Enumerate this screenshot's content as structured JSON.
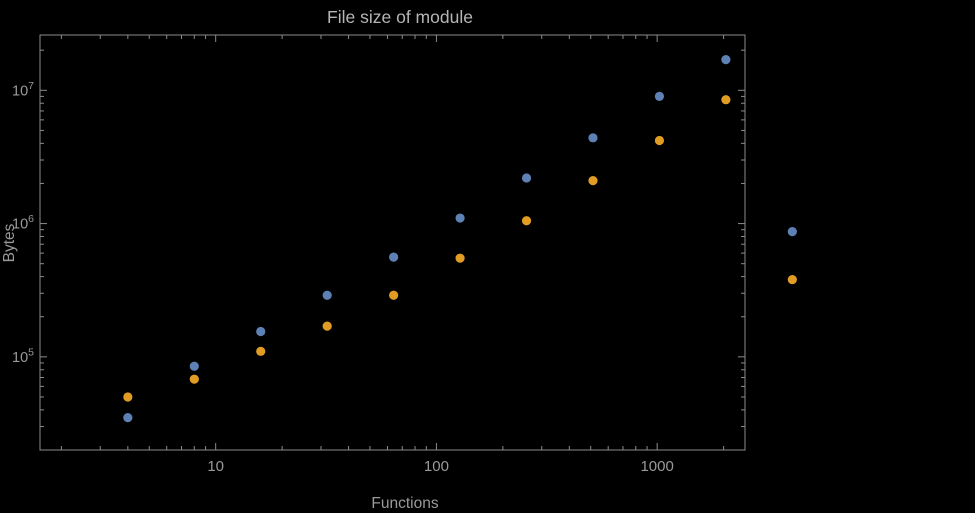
{
  "title": "File size of module",
  "xlabel": "Functions",
  "ylabel": "Bytes",
  "colors": {
    "background": "#000000",
    "frame": "#8c8c8c",
    "grid": "#6b6b6b",
    "tick_text": "#9a9a9a",
    "label_text": "#9a9a9a",
    "title_text": "#b5b5b5",
    "series1": "#5e81b5",
    "series2": "#e19c24"
  },
  "chart_data": {
    "type": "scatter",
    "title": "File size of module",
    "xlabel": "Functions",
    "ylabel": "Bytes",
    "xscale": "log",
    "yscale": "log",
    "grid": "dotted-major",
    "legend_position": "none",
    "xlim": [
      1.6,
      2500
    ],
    "ylim": [
      20000,
      26000000
    ],
    "x_major_ticks": [
      10,
      100,
      1000
    ],
    "x_tick_labels": [
      "10",
      "100",
      "1000"
    ],
    "y_major_ticks": [
      100000,
      1000000,
      10000000
    ],
    "y_tick_base": "10",
    "y_tick_exponents": [
      "5",
      "6",
      "7"
    ],
    "x": [
      4,
      8,
      16,
      32,
      64,
      128,
      256,
      512,
      1024,
      2048,
      4096
    ],
    "series": [
      {
        "name": "series-blue",
        "color": "#5e81b5",
        "values": [
          35000,
          85000,
          155000,
          290000,
          560000,
          1100000,
          2200000,
          4400000,
          9000000,
          17000000,
          870000
        ]
      },
      {
        "name": "series-orange",
        "color": "#e19c24",
        "values": [
          50000,
          68000,
          110000,
          170000,
          290000,
          550000,
          1050000,
          2100000,
          4200000,
          8500000,
          380000
        ]
      }
    ]
  }
}
